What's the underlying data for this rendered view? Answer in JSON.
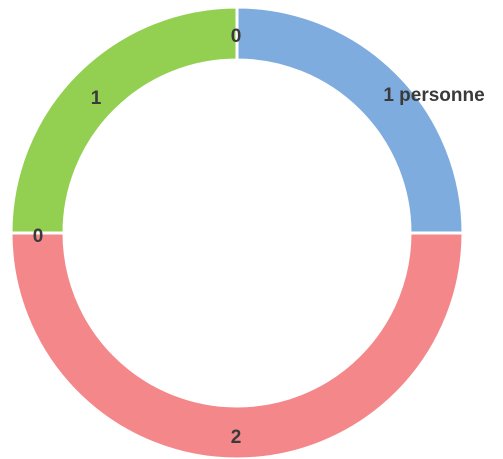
{
  "chart_data": {
    "type": "pie",
    "style": "donut",
    "slices": [
      {
        "label": "1 personne",
        "value": 1,
        "color": "#7eacde"
      },
      {
        "label": "2",
        "value": 2,
        "color": "#f4878a"
      },
      {
        "label": "0",
        "value": 0,
        "color": "#9fcd5a"
      },
      {
        "label": "1",
        "value": 1,
        "color": "#93d052"
      },
      {
        "label": "0",
        "value": 0,
        "color": "#7eacde"
      }
    ],
    "title": "",
    "legend": "none"
  }
}
